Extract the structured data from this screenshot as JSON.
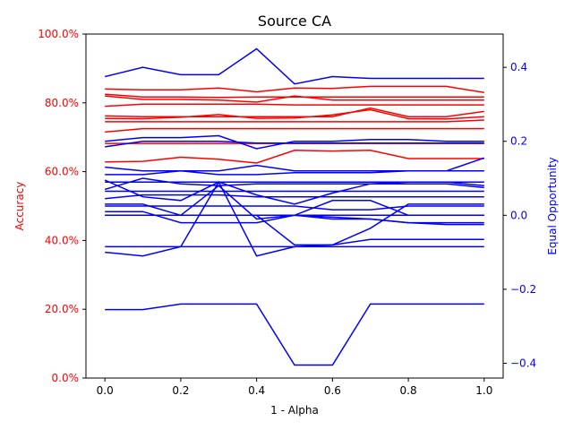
{
  "chart_data": {
    "type": "line",
    "title": "Source CA",
    "xlabel": "1 - Alpha",
    "ylabel_left": "Accuracy",
    "ylabel_right": "Equal Opportunity",
    "x": [
      0.0,
      0.1,
      0.2,
      0.3,
      0.4,
      0.5,
      0.6,
      0.7,
      0.8,
      0.9,
      1.0
    ],
    "x_ticks": [
      "0.0",
      "0.2",
      "0.4",
      "0.6",
      "0.8",
      "1.0"
    ],
    "xlim": [
      -0.05,
      1.05
    ],
    "ylim_left": [
      0,
      100
    ],
    "y_ticks_left": [
      "0.0%",
      "20.0%",
      "40.0%",
      "60.0%",
      "80.0%",
      "100.0%"
    ],
    "ylim_right": [
      -0.44,
      0.49
    ],
    "y_ticks_right": [
      "−0.4",
      "−0.2",
      "0.0",
      "0.2",
      "0.4"
    ],
    "colors": {
      "left_axis": "#ff0000",
      "right_axis": "#0000ff",
      "accuracy_series": "#ff0000",
      "eo_series": "#0000ff"
    },
    "accuracy_series": [
      [
        84,
        83.8,
        83.8,
        84.3,
        83.2,
        84.3,
        84.2,
        84.8,
        84.8,
        84.8,
        83
      ],
      [
        82.5,
        81.7,
        81.7,
        81.6,
        81.7,
        81.7,
        81.7,
        81.7,
        81.7,
        81.7,
        81.7
      ],
      [
        82,
        81,
        81,
        80.8,
        80.2,
        82,
        80.8,
        80.8,
        80.8,
        80.8,
        80.8
      ],
      [
        79,
        79.6,
        79.6,
        79.6,
        79.6,
        79.4,
        79.4,
        79.4,
        79.4,
        79.4,
        79.4
      ],
      [
        76.2,
        76,
        76,
        76,
        76,
        76,
        76,
        78.5,
        76,
        76,
        77.5
      ],
      [
        75.5,
        75.4,
        75.8,
        76.6,
        75.5,
        75.6,
        76.5,
        78,
        75.4,
        75.3,
        76
      ],
      [
        74.5,
        74.5,
        74.5,
        74.5,
        74.5,
        74.5,
        74.5,
        74.5,
        74.5,
        74.5,
        75
      ],
      [
        71.5,
        72.5,
        72.5,
        72.5,
        72.5,
        72.5,
        72.5,
        72.5,
        72.5,
        72.5,
        72.5
      ],
      [
        68.2,
        68.2,
        68.2,
        68.2,
        68.2,
        68.2,
        68.2,
        68.2,
        68.2,
        68.2,
        68.2
      ],
      [
        62.8,
        63,
        64.2,
        63.6,
        62.5,
        66.2,
        66,
        66.2,
        63.8,
        63.8,
        63.8
      ]
    ],
    "eo_series": [
      [
        0.375,
        0.4,
        0.38,
        0.38,
        0.45,
        0.355,
        0.375,
        0.37,
        0.37,
        0.37,
        0.37
      ],
      [
        0.2,
        0.21,
        0.21,
        0.215,
        0.18,
        0.2,
        0.2,
        0.205,
        0.205,
        0.2,
        0.2
      ],
      [
        0.185,
        0.2,
        0.2,
        0.2,
        0.195,
        0.195,
        0.195,
        0.195,
        0.195,
        0.195,
        0.195
      ],
      [
        0.13,
        0.12,
        0.12,
        0.12,
        0.135,
        0.12,
        0.12,
        0.12,
        0.12,
        0.12,
        0.155
      ],
      [
        0.11,
        0.11,
        0.12,
        0.11,
        0.11,
        0.115,
        0.115,
        0.115,
        0.12,
        0.12,
        0.12
      ],
      [
        0.09,
        0.09,
        0.09,
        0.09,
        0.09,
        0.09,
        0.09,
        0.09,
        0.09,
        0.09,
        0.09
      ],
      [
        0.07,
        0.1,
        0.085,
        0.08,
        0.085,
        0.085,
        0.085,
        0.085,
        0.085,
        0.085,
        0.075
      ],
      [
        0.065,
        0.065,
        0.065,
        0.065,
        0.065,
        0.065,
        0.065,
        0.065,
        0.065,
        0.065,
        0.065
      ],
      [
        0.095,
        0.05,
        0.04,
        0.09,
        0.055,
        0.03,
        0.06,
        0.085,
        0.09,
        0.09,
        0.08
      ],
      [
        0.045,
        0.055,
        0.055,
        0.055,
        0.05,
        0.05,
        0.05,
        0.05,
        0.05,
        0.05,
        0.05
      ],
      [
        0.025,
        0.025,
        0.025,
        0.025,
        0.025,
        0.025,
        0.015,
        0.015,
        0.025,
        0.025,
        0.025
      ],
      [
        0.0,
        0.0,
        0.0,
        0.0,
        0.0,
        0.0,
        0.0,
        0.0,
        0.0,
        0.0,
        0.0
      ],
      [
        0.03,
        0.03,
        0.0,
        0.08,
        -0.01,
        0.0,
        0.04,
        0.04,
        0.0,
        0.0,
        0.0
      ],
      [
        0.01,
        0.01,
        -0.02,
        -0.02,
        -0.02,
        0.0,
        -0.005,
        -0.01,
        -0.02,
        -0.025,
        -0.025
      ],
      [
        0.0,
        0.0,
        0.0,
        0.0,
        0.0,
        0.0,
        -0.01,
        -0.01,
        -0.02,
        -0.02,
        -0.02
      ],
      [
        -0.085,
        -0.085,
        -0.085,
        -0.085,
        -0.085,
        -0.085,
        -0.085,
        -0.085,
        -0.085,
        -0.085,
        -0.085
      ],
      [
        -0.1,
        -0.11,
        -0.085,
        0.09,
        -0.11,
        -0.085,
        -0.08,
        -0.065,
        -0.065,
        -0.065,
        -0.065
      ],
      [
        0.0,
        0.0,
        0.0,
        0.0,
        0.0,
        -0.08,
        -0.08,
        -0.035,
        0.03,
        0.03,
        0.03
      ],
      [
        -0.255,
        -0.255,
        -0.24,
        -0.24,
        -0.24,
        -0.405,
        -0.405,
        -0.24,
        -0.24,
        -0.24,
        -0.24
      ]
    ]
  }
}
